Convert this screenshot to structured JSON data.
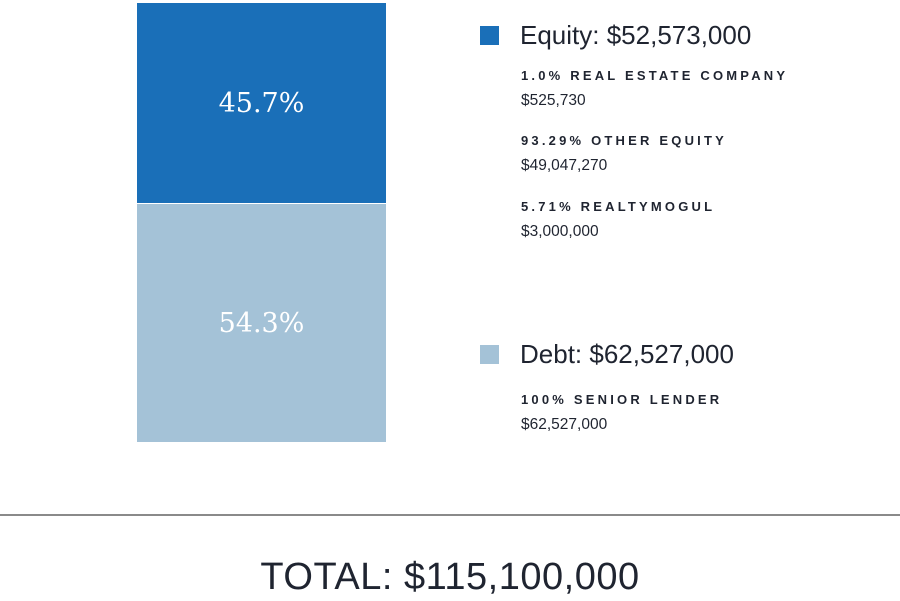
{
  "chart_data": {
    "type": "bar",
    "stacked": true,
    "categories": [
      ""
    ],
    "series": [
      {
        "name": "Equity",
        "value_pct": 45.7,
        "label": "45.7%",
        "color": "#1a6fb8"
      },
      {
        "name": "Debt",
        "value_pct": 54.3,
        "label": "54.3%",
        "color": "#a4c2d7"
      }
    ],
    "legend": [
      {
        "title": "Equity: $52,573,000",
        "color": "#1a6fb8",
        "items": [
          {
            "label": "1.0% REAL ESTATE COMPANY",
            "value": "$525,730"
          },
          {
            "label": "93.29% OTHER EQUITY",
            "value": "$49,047,270"
          },
          {
            "label": "5.71% REALTYMOGUL",
            "value": "$3,000,000"
          }
        ]
      },
      {
        "title": "Debt: $62,527,000",
        "color": "#a4c2d7",
        "items": [
          {
            "label": "100% SENIOR LENDER",
            "value": "$62,527,000"
          }
        ]
      }
    ],
    "total_label": "TOTAL: $115,100,000"
  }
}
